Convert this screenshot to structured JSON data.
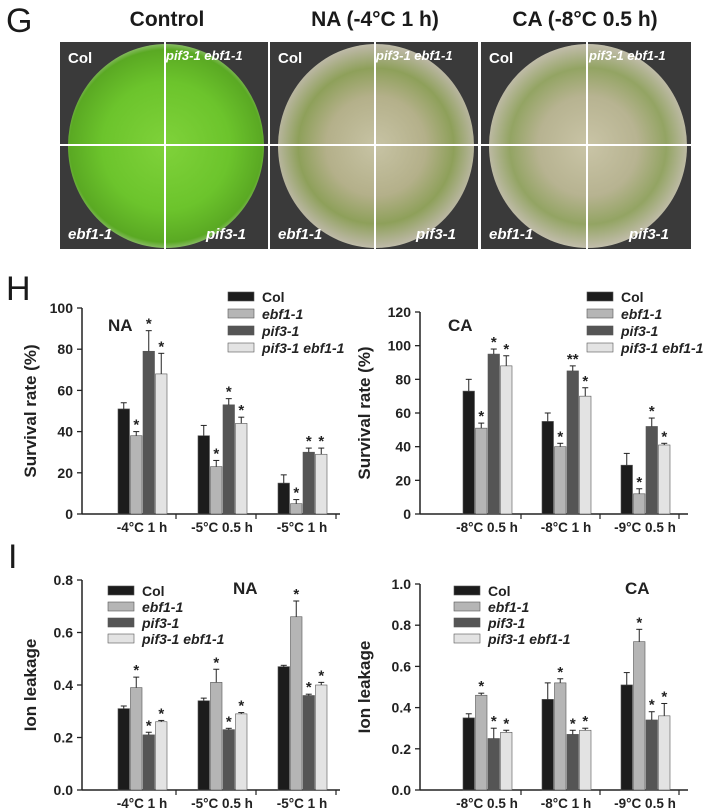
{
  "panels": {
    "g_letter": "G",
    "h_letter": "H",
    "i_letter": "I"
  },
  "plates": [
    {
      "title": "Control",
      "labels": {
        "top_left": "Col",
        "top_right": "pif3-1 ebf1-1",
        "bottom_left": "ebf1-1",
        "bottom_right": "pif3-1"
      },
      "condition": "healthy"
    },
    {
      "title": "NA (-4°C 1 h)",
      "labels": {
        "top_left": "Col",
        "top_right": "pif3-1 ebf1-1",
        "bottom_left": "ebf1-1",
        "bottom_right": "pif3-1"
      },
      "condition": "frozen"
    },
    {
      "title": "CA (-8°C 0.5 h)",
      "labels": {
        "top_left": "Col",
        "top_right": "pif3-1 ebf1-1",
        "bottom_left": "ebf1-1",
        "bottom_right": "pif3-1"
      },
      "condition": "frozen"
    }
  ],
  "colors": {
    "Col": "#1c1c1c",
    "ebf1-1": "#b5b5b5",
    "pif3-1": "#555555",
    "pif3-1 ebf1-1": "#e3e3e3"
  },
  "chart_data": [
    {
      "id": "H-NA",
      "type": "bar",
      "annotation": "NA",
      "categories": [
        "-4°C 1 h",
        "-5°C 0.5 h",
        "-5°C 1 h"
      ],
      "series": [
        {
          "name": "Col",
          "values": [
            51,
            38,
            15
          ],
          "errors": [
            3,
            5,
            4
          ],
          "marks": [
            "",
            "",
            ""
          ]
        },
        {
          "name": "ebf1-1",
          "values": [
            38,
            23,
            5
          ],
          "errors": [
            2,
            3,
            2
          ],
          "marks": [
            "*",
            "*",
            "*"
          ]
        },
        {
          "name": "pif3-1",
          "values": [
            79,
            53,
            30
          ],
          "errors": [
            10,
            3,
            2
          ],
          "marks": [
            "*",
            "*",
            "*"
          ]
        },
        {
          "name": "pif3-1 ebf1-1",
          "values": [
            68,
            44,
            29
          ],
          "errors": [
            10,
            3,
            3
          ],
          "marks": [
            "*",
            "*",
            "*"
          ]
        }
      ],
      "ylabel": "Survival rate (%)",
      "ylim": [
        0,
        100
      ],
      "yticks": [
        "0",
        "20",
        "40",
        "60",
        "80",
        "100"
      ],
      "legend": "top-right"
    },
    {
      "id": "H-CA",
      "type": "bar",
      "annotation": "CA",
      "categories": [
        "-8°C 0.5 h",
        "-8°C 1 h",
        "-9°C 0.5 h"
      ],
      "series": [
        {
          "name": "Col",
          "values": [
            73,
            55,
            29
          ],
          "errors": [
            7,
            5,
            7
          ],
          "marks": [
            "",
            "",
            ""
          ]
        },
        {
          "name": "ebf1-1",
          "values": [
            51,
            40,
            12
          ],
          "errors": [
            3,
            2,
            3
          ],
          "marks": [
            "*",
            "*",
            "*"
          ]
        },
        {
          "name": "pif3-1",
          "values": [
            95,
            85,
            52
          ],
          "errors": [
            3,
            3,
            5
          ],
          "marks": [
            "*",
            "**",
            "*"
          ]
        },
        {
          "name": "pif3-1 ebf1-1",
          "values": [
            88,
            70,
            41
          ],
          "errors": [
            6,
            5,
            1
          ],
          "marks": [
            "*",
            "*",
            "*"
          ]
        }
      ],
      "ylabel": "Survival rate (%)",
      "ylim": [
        0,
        120
      ],
      "yticks": [
        "0",
        "20",
        "40",
        "60",
        "80",
        "100",
        "120"
      ],
      "legend": "top-right"
    },
    {
      "id": "I-NA",
      "type": "bar",
      "annotation": "NA",
      "categories": [
        "-4°C 1 h",
        "-5°C 0.5 h",
        "-5°C 1 h"
      ],
      "series": [
        {
          "name": "Col",
          "values": [
            0.31,
            0.34,
            0.47
          ],
          "errors": [
            0.01,
            0.01,
            0.005
          ],
          "marks": [
            "",
            "",
            ""
          ]
        },
        {
          "name": "ebf1-1",
          "values": [
            0.39,
            0.41,
            0.66
          ],
          "errors": [
            0.04,
            0.05,
            0.06
          ],
          "marks": [
            "*",
            "*",
            "*"
          ]
        },
        {
          "name": "pif3-1",
          "values": [
            0.21,
            0.23,
            0.36
          ],
          "errors": [
            0.01,
            0.005,
            0.005
          ],
          "marks": [
            "*",
            "*",
            "*"
          ]
        },
        {
          "name": "pif3-1 ebf1-1",
          "values": [
            0.26,
            0.29,
            0.4
          ],
          "errors": [
            0.005,
            0.005,
            0.01
          ],
          "marks": [
            "*",
            "*",
            "*"
          ]
        }
      ],
      "ylabel": "Ion leakage",
      "ylim": [
        0,
        0.8
      ],
      "yticks": [
        "0.0",
        "0.2",
        "0.4",
        "0.6",
        "0.8"
      ],
      "legend": "top-left"
    },
    {
      "id": "I-CA",
      "type": "bar",
      "annotation": "CA",
      "categories": [
        "-8°C 0.5 h",
        "-8°C 1 h",
        "-9°C 0.5 h"
      ],
      "series": [
        {
          "name": "Col",
          "values": [
            0.35,
            0.44,
            0.51
          ],
          "errors": [
            0.02,
            0.08,
            0.06
          ],
          "marks": [
            "",
            "",
            ""
          ]
        },
        {
          "name": "ebf1-1",
          "values": [
            0.46,
            0.52,
            0.72
          ],
          "errors": [
            0.01,
            0.02,
            0.06
          ],
          "marks": [
            "*",
            "*",
            "*"
          ]
        },
        {
          "name": "pif3-1",
          "values": [
            0.25,
            0.27,
            0.34
          ],
          "errors": [
            0.05,
            0.02,
            0.04
          ],
          "marks": [
            "*",
            "*",
            "*"
          ]
        },
        {
          "name": "pif3-1 ebf1-1",
          "values": [
            0.28,
            0.29,
            0.36
          ],
          "errors": [
            0.01,
            0.01,
            0.06
          ],
          "marks": [
            "*",
            "*",
            "*"
          ]
        }
      ],
      "ylabel": "Ion leakage",
      "ylim": [
        0,
        1.0
      ],
      "yticks": [
        "0.0",
        "0.2",
        "0.4",
        "0.6",
        "0.8",
        "1.0"
      ],
      "legend": "top-left"
    }
  ]
}
